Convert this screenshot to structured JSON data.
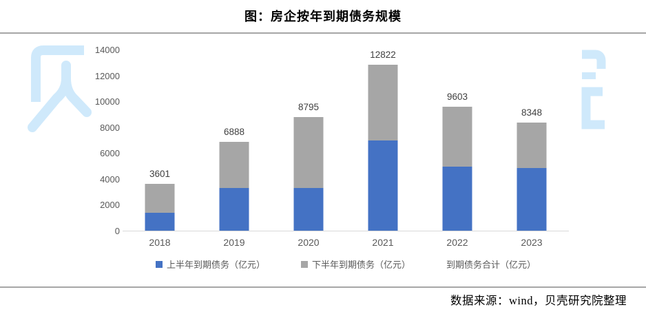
{
  "title": "图：房企按年到期债务规模",
  "source": "数据来源：wind，贝壳研究院整理",
  "watermark": {
    "name": "贝壳(Beike)水印",
    "left_glyph": "贝",
    "right_glyph": "壳(partial)",
    "color": "#cfe9fb"
  },
  "colors": {
    "first_half_bar": "#4472c4",
    "second_half_bar": "#a6a6a6",
    "axis_text": "#595959",
    "data_label_text": "#404040",
    "rule": "#a6a6a6",
    "axis_line": "#d9d9d9"
  },
  "legend": {
    "items": [
      {
        "label": "上半年到期债务（亿元）",
        "swatch": "#4472c4"
      },
      {
        "label": "下半年到期债务（亿元）",
        "swatch": "#a6a6a6"
      },
      {
        "label": "到期债务合计（亿元）",
        "swatch": null
      }
    ],
    "position": "bottom"
  },
  "chart_data": {
    "type": "bar",
    "stacked": true,
    "title": "图：房企按年到期债务规模",
    "categories": [
      "2018",
      "2019",
      "2020",
      "2021",
      "2022",
      "2023"
    ],
    "series": [
      {
        "name": "上半年到期债务（亿元）",
        "color": "#4472c4",
        "values": [
          1400,
          3320,
          3280,
          7000,
          4950,
          4860
        ],
        "note": "values estimated from bar heights; not labeled on chart"
      },
      {
        "name": "下半年到期债务（亿元）",
        "color": "#a6a6a6",
        "values": [
          2201,
          3568,
          5515,
          5822,
          4653,
          3488
        ],
        "note": "values estimated from bar heights; not labeled on chart"
      }
    ],
    "totals": {
      "name": "到期债务合计（亿元）",
      "values": [
        3601,
        6888,
        8795,
        12822,
        9603,
        8348
      ]
    },
    "xlabel": "",
    "ylabel": "",
    "ylim": [
      0,
      14000
    ],
    "ytick_step": 2000,
    "grid": false,
    "legend_position": "bottom"
  }
}
